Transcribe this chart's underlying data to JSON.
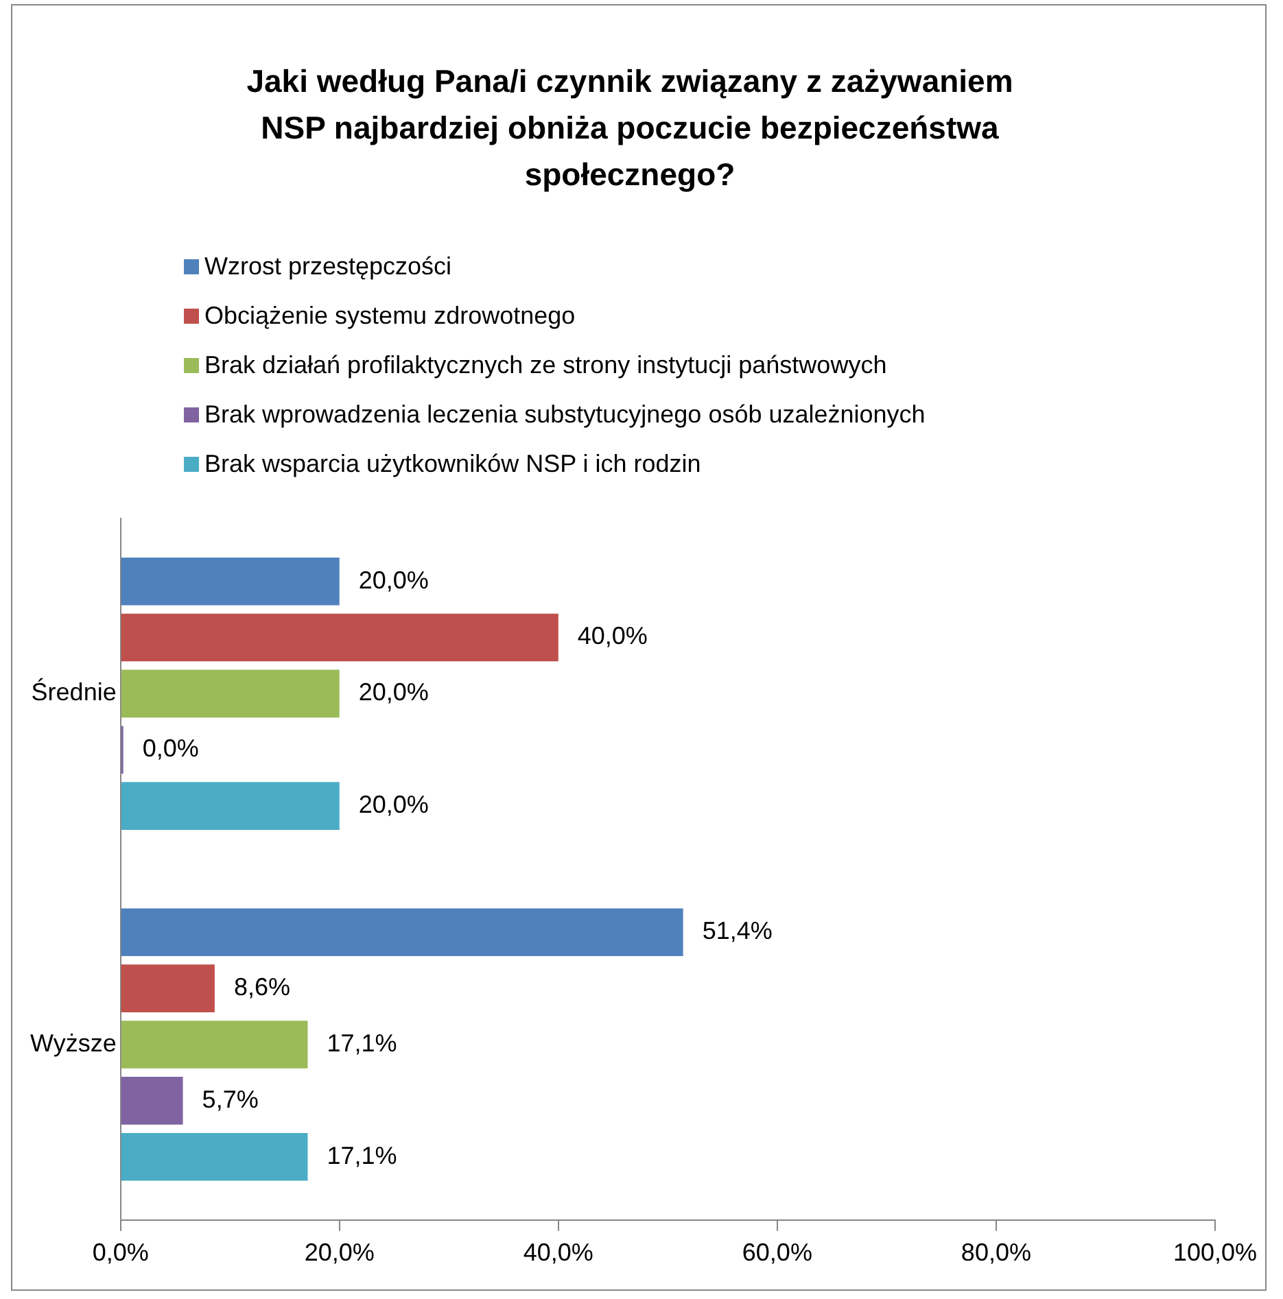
{
  "chart_data": {
    "type": "bar",
    "orientation": "horizontal",
    "title": "Jaki według Pana/i czynnik związany z zażywaniem NSP najbardziej obniża poczucie bezpieczeństwa społecznego?",
    "categories": [
      "Średnie",
      "Wyższe"
    ],
    "series": [
      {
        "name": "Wzrost przestępczości",
        "color": "#4f81bd",
        "values": [
          20.0,
          51.4
        ],
        "value_labels": [
          "20,0%",
          "51,4%"
        ]
      },
      {
        "name": "Obciążenie systemu zdrowotnego",
        "color": "#c0504d",
        "values": [
          40.0,
          8.6
        ],
        "value_labels": [
          "40,0%",
          "8,6%"
        ]
      },
      {
        "name": "Brak działań profilaktycznych ze strony instytucji państwowych",
        "color": "#9bbb59",
        "values": [
          20.0,
          17.1
        ],
        "value_labels": [
          "20,0%",
          "17,1%"
        ]
      },
      {
        "name": "Brak wprowadzenia leczenia substytucyjnego osób uzależnionych",
        "color": "#8064a2",
        "values": [
          0.0,
          5.7
        ],
        "value_labels": [
          "0,0%",
          "5,7%"
        ]
      },
      {
        "name": "Brak wsparcia użytkowników NSP i ich rodzin",
        "color": "#4bacc6",
        "values": [
          20.0,
          17.1
        ],
        "value_labels": [
          "20,0%",
          "17,1%"
        ]
      }
    ],
    "xlim": [
      0,
      100
    ],
    "xticks": [
      {
        "value": 0,
        "label": "0,0%"
      },
      {
        "value": 20,
        "label": "20,0%"
      },
      {
        "value": 40,
        "label": "40,0%"
      },
      {
        "value": 60,
        "label": "60,0%"
      },
      {
        "value": 80,
        "label": "80,0%"
      },
      {
        "value": 100,
        "label": "100,0%"
      }
    ],
    "grid": false,
    "legend": "top"
  }
}
